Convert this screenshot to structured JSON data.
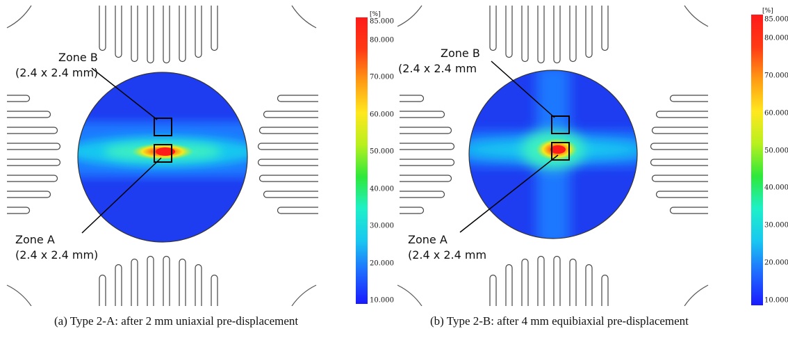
{
  "panels": [
    {
      "zone_b_line1": "Zone B",
      "zone_b_line2": "(2.4 x 2.4 mm)",
      "zone_a_line1": "Zone A",
      "zone_a_line2": "(2.4 x 2.4 mm)",
      "caption": "(a)  Type 2-A: after 2 mm uniaxial pre-displacement"
    },
    {
      "zone_b_line1": "Zone B",
      "zone_b_line2": "(2.4 x 2.4 mm",
      "zone_a_line1": "Zone A",
      "zone_a_line2": "(2.4 x 2.4 mm",
      "caption": "(b)  Type 2-B: after 4 mm equibiaxial pre-displacement"
    }
  ],
  "colorbar": {
    "unit": "[%]",
    "ticks": [
      "85.000",
      "80.000",
      "70.000",
      "60.000",
      "50.000",
      "40.000",
      "30.000",
      "20.000",
      "10.000"
    ],
    "tick_values": [
      85,
      80,
      70,
      60,
      50,
      40,
      30,
      20,
      10
    ],
    "min": 10,
    "max": 85,
    "colors": [
      "#1a1aff",
      "#1f6bff",
      "#19c8f0",
      "#1ef0c8",
      "#2ee83a",
      "#b8f01e",
      "#ffe81e",
      "#ff9b14",
      "#ff3a14",
      "#ff1a1a"
    ]
  }
}
